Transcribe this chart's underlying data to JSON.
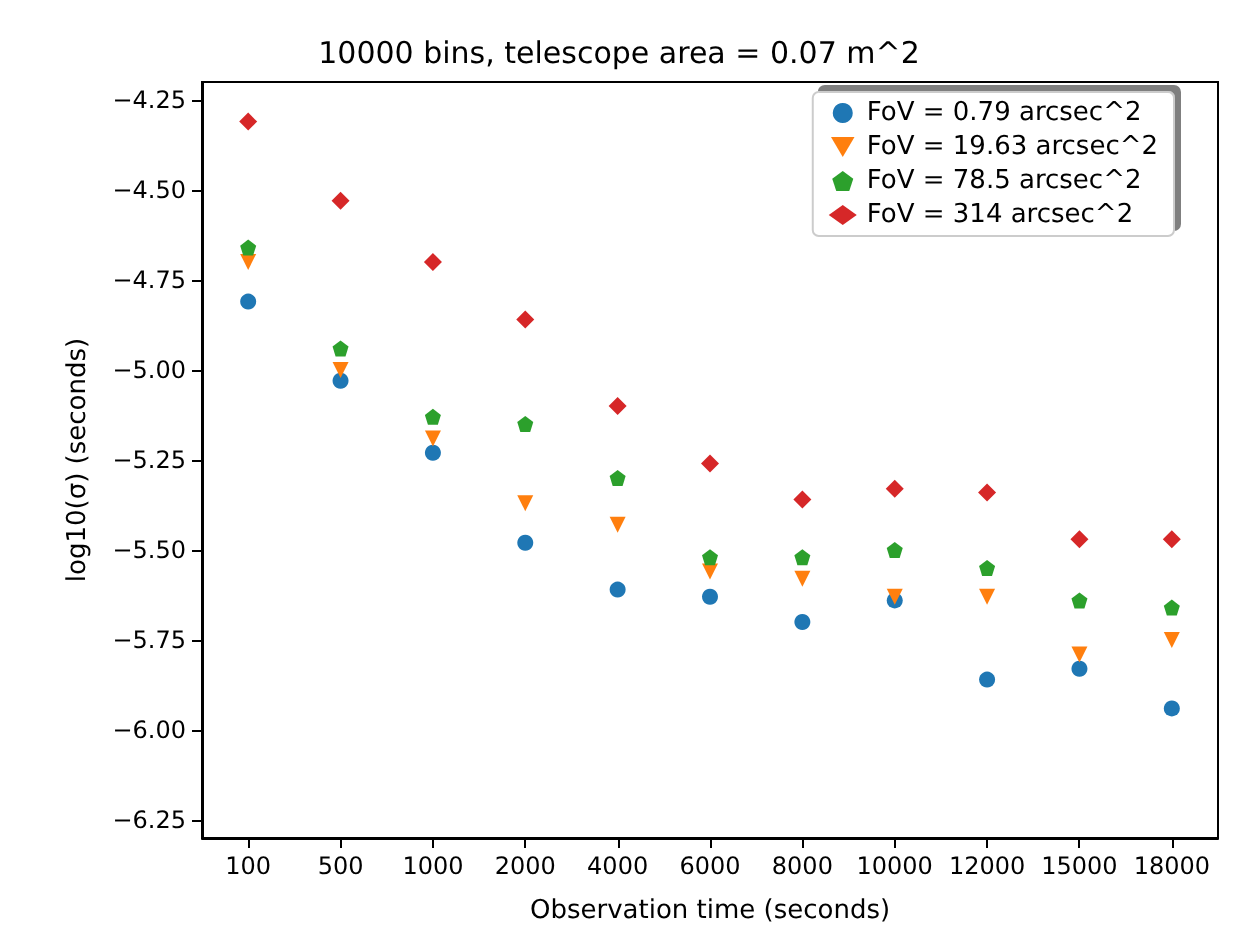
{
  "chart_data": {
    "type": "scatter",
    "title": "10000 bins, telescope area = 0.07 m^2",
    "xlabel": "Observation time (seconds)",
    "ylabel": "log10(σ) (seconds)",
    "categories": [
      "100",
      "500",
      "1000",
      "2000",
      "4000",
      "6000",
      "8000",
      "10000",
      "12000",
      "15000",
      "18000"
    ],
    "ylim": [
      -6.3,
      -4.2
    ],
    "yticks": [
      {
        "value": -6.25,
        "label": "−6.25"
      },
      {
        "value": -6.0,
        "label": "−6.00"
      },
      {
        "value": -5.75,
        "label": "−5.75"
      },
      {
        "value": -5.5,
        "label": "−5.50"
      },
      {
        "value": -5.25,
        "label": "−5.25"
      },
      {
        "value": -5.0,
        "label": "−5.00"
      },
      {
        "value": -4.75,
        "label": "−4.75"
      },
      {
        "value": -4.5,
        "label": "−4.50"
      },
      {
        "value": -4.25,
        "label": "−4.25"
      }
    ],
    "grid": false,
    "legend": "top right",
    "series": [
      {
        "name": "FoV = 0.79 arcsec^2",
        "color": "#1f77b4",
        "marker": "circle",
        "values": [
          -4.81,
          -5.03,
          -5.23,
          -5.48,
          -5.61,
          -5.63,
          -5.7,
          -5.64,
          -5.86,
          -5.83,
          -5.94
        ]
      },
      {
        "name": "FoV = 19.63 arcsec^2",
        "color": "#ff7f0e",
        "marker": "triangle",
        "values": [
          -4.7,
          -5.0,
          -5.19,
          -5.37,
          -5.43,
          -5.56,
          -5.58,
          -5.63,
          -5.63,
          -5.79,
          -5.75
        ]
      },
      {
        "name": "FoV = 78.5 arcsec^2",
        "color": "#2ca02c",
        "values": [
          -4.66,
          -4.94,
          -5.13,
          -5.15,
          -5.3,
          -5.52,
          -5.52,
          -5.5,
          -5.55,
          -5.64,
          -5.66
        ]
      },
      {
        "name": "FoV = 314 arcsec^2",
        "color": "#d62728",
        "marker": "diamond",
        "values": [
          -4.31,
          -4.53,
          -4.7,
          -4.86,
          -5.1,
          -5.26,
          -5.36,
          -5.33,
          -5.34,
          -5.47,
          -5.47
        ]
      }
    ]
  }
}
